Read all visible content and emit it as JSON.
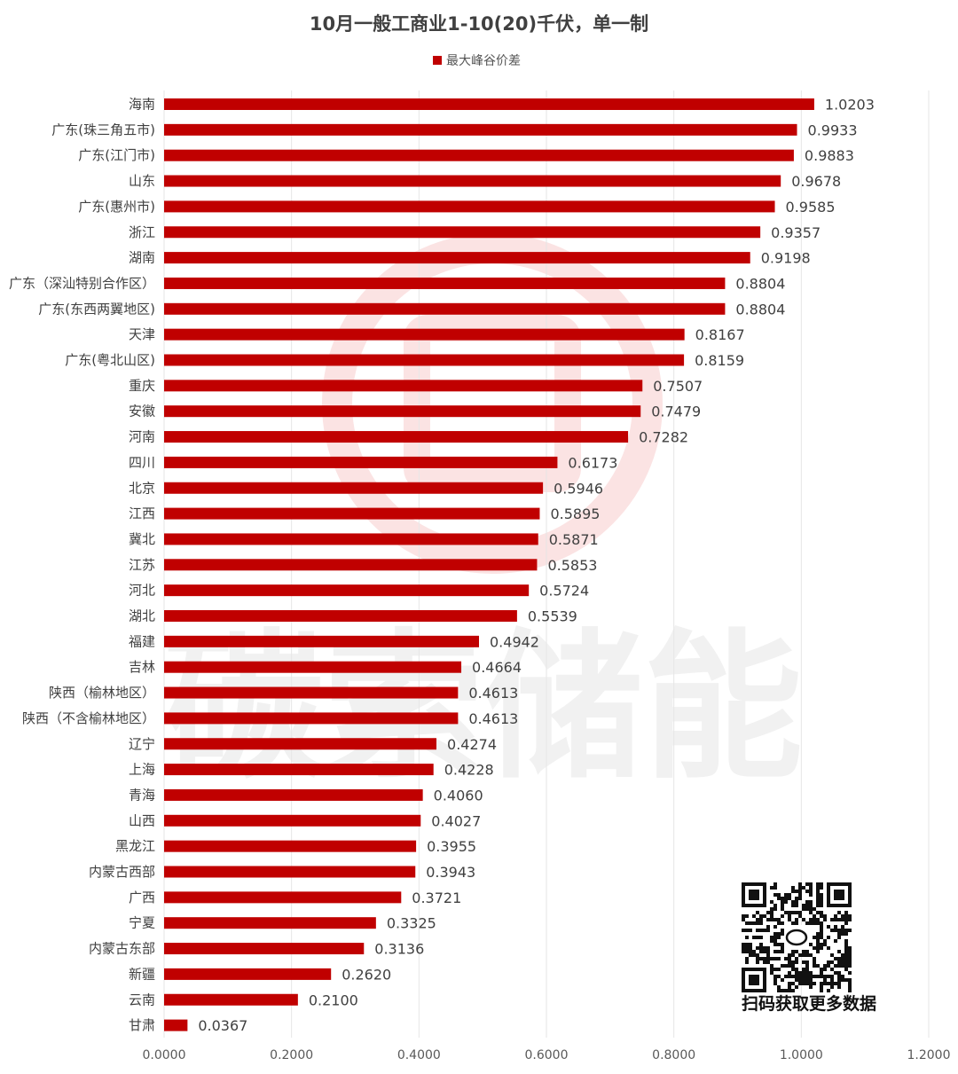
{
  "colors": {
    "bar": "#c00000",
    "grid": "#e6e6e6",
    "watermark_logo": "#fbe3e3",
    "qr": "#111111"
  },
  "watermark": {
    "text": "碳索储能",
    "logo_icon": "brand-logo-icon"
  },
  "qr": {
    "icon": "qr-code-icon",
    "caption": "扫码获取更多数据"
  },
  "chart_data": {
    "type": "bar",
    "orientation": "horizontal",
    "title": "10月一般工商业1-10(20)千伏，单一制",
    "legend": {
      "entries": [
        "最大峰谷价差"
      ],
      "placement": "top-center"
    },
    "series": [
      {
        "name": "最大峰谷价差",
        "color": "#c00000",
        "values": [
          1.0203,
          0.9933,
          0.9883,
          0.9678,
          0.9585,
          0.9357,
          0.9198,
          0.8804,
          0.8804,
          0.8167,
          0.8159,
          0.7507,
          0.7479,
          0.7282,
          0.6173,
          0.5946,
          0.5895,
          0.5871,
          0.5853,
          0.5724,
          0.5539,
          0.4942,
          0.4664,
          0.4613,
          0.4613,
          0.4274,
          0.4228,
          0.406,
          0.4027,
          0.3955,
          0.3943,
          0.3721,
          0.3325,
          0.3136,
          0.262,
          0.21,
          0.0367
        ],
        "value_labels": [
          "1.0203",
          "0.9933",
          "0.9883",
          "0.9678",
          "0.9585",
          "0.9357",
          "0.9198",
          "0.8804",
          "0.8804",
          "0.8167",
          "0.8159",
          "0.7507",
          "0.7479",
          "0.7282",
          "0.6173",
          "0.5946",
          "0.5895",
          "0.5871",
          "0.5853",
          "0.5724",
          "0.5539",
          "0.4942",
          "0.4664",
          "0.4613",
          "0.4613",
          "0.4274",
          "0.4228",
          "0.4060",
          "0.4027",
          "0.3955",
          "0.3943",
          "0.3721",
          "0.3325",
          "0.3136",
          "0.2620",
          "0.2100",
          "0.0367"
        ]
      }
    ],
    "categories": [
      "海南",
      "广东(珠三角五市)",
      "广东(江门市)",
      "山东",
      "广东(惠州市)",
      "浙江",
      "湖南",
      "广东（深汕特别合作区）",
      "广东(东西两翼地区)",
      "天津",
      "广东(粤北山区)",
      "重庆",
      "安徽",
      "河南",
      "四川",
      "北京",
      "江西",
      "冀北",
      "江苏",
      "河北",
      "湖北",
      "福建",
      "吉林",
      "陕西（榆林地区）",
      "陕西（不含榆林地区）",
      "辽宁",
      "上海",
      "青海",
      "山西",
      "黑龙江",
      "内蒙古西部",
      "广西",
      "宁夏",
      "内蒙古东部",
      "新疆",
      "云南",
      "甘肃"
    ],
    "xlim": [
      0,
      1.2
    ],
    "xticks": [
      0,
      0.2,
      0.4,
      0.6,
      0.8,
      1.0,
      1.2
    ],
    "xtick_labels": [
      "0.0000",
      "0.2000",
      "0.4000",
      "0.6000",
      "0.8000",
      "1.0000",
      "1.2000"
    ],
    "grid": {
      "vertical": true,
      "horizontal": false
    }
  }
}
